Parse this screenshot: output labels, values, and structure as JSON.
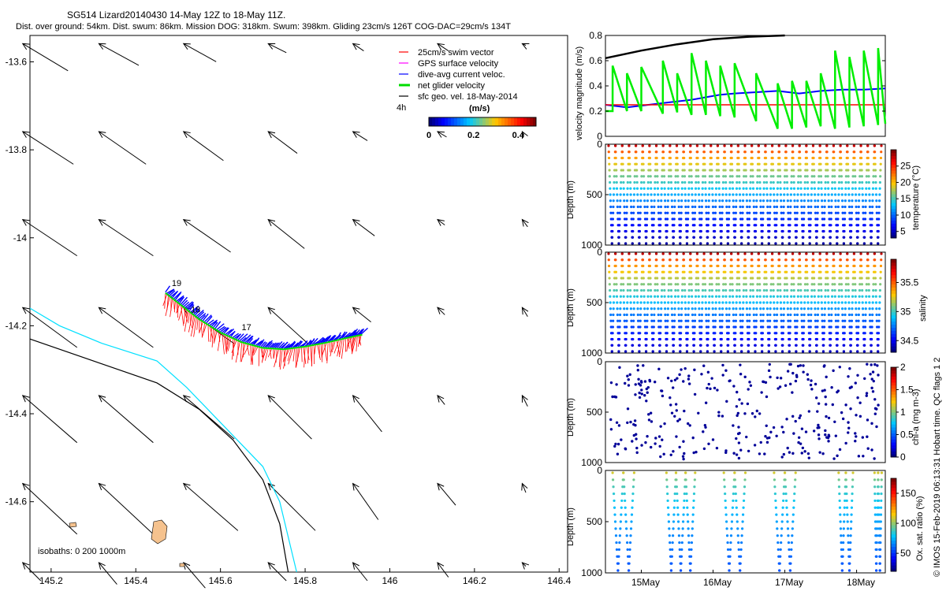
{
  "header": {
    "title": "SG514 Lizard20140430 14-May 12Z to 18-May 11Z.",
    "subtitle": "Dist. over ground: 54km. Dist. swum: 86km. Mission DOG: 318km. Swum: 398km. Gliding 23cm/s 126T COG-DAC=29cm/s 134T"
  },
  "copyright": "© IMOS 15-Feb-2019 06:13:31 Hobart time. QC flags 1  2",
  "colors": {
    "swim": "#ff0000",
    "gps": "#ff00ff",
    "dac": "#0000ff",
    "net": "#00dd00",
    "sfc": "#000000",
    "isobath_shallow": "#00e0ff",
    "isobath_deep": "#000000",
    "island": "#f5c28e"
  },
  "chart_data": [
    {
      "id": "map",
      "type": "scatter",
      "title": "",
      "xlabel": "",
      "ylabel": "",
      "xlim": [
        145.15,
        146.42
      ],
      "ylim": [
        -14.76,
        -13.54
      ],
      "xticks": [
        "145.2",
        "145.4",
        "145.6",
        "145.8",
        "146",
        "146.2",
        "146.4"
      ],
      "xtick_values": [
        145.2,
        145.4,
        145.6,
        145.8,
        146.0,
        146.2,
        146.4
      ],
      "yticks": [
        "-13.6",
        "-13.8",
        "-14",
        "-14.2",
        "-14.4",
        "-14.6"
      ],
      "ytick_values": [
        -13.6,
        -13.8,
        -14.0,
        -14.2,
        -14.4,
        -14.6
      ],
      "legend": {
        "placement": "top-right",
        "entries": [
          "25cm/s swim vector",
          "GPS surface velocity",
          "dive-avg current veloc.",
          "net glider velocity",
          "sfc geo. vel. 18-May-2014"
        ],
        "arrow_scale_label": "4h",
        "colorbar_title": "(m/s)",
        "colorbar_ticks": [
          "0",
          "0.2",
          "0.4"
        ],
        "colorbar_tick_values": [
          0,
          0.2,
          0.4
        ],
        "colorbar_range": [
          0,
          0.48
        ]
      },
      "isobath_label": "isobaths: 0   200  1000m",
      "day_labels": [
        "19",
        "18",
        "17"
      ],
      "day_label_positions": [
        [
          145.485,
          -14.11
        ],
        [
          145.53,
          -14.17
        ],
        [
          145.65,
          -14.21
        ]
      ],
      "track": {
        "lon": [
          145.47,
          145.51,
          145.55,
          145.6,
          145.65,
          145.7,
          145.75,
          145.8,
          145.85,
          145.9,
          145.935
        ],
        "lat": [
          -14.12,
          -14.15,
          -14.18,
          -14.21,
          -14.232,
          -14.245,
          -14.248,
          -14.242,
          -14.233,
          -14.222,
          -14.215
        ]
      },
      "isobath_shallow": {
        "lon": [
          145.15,
          145.22,
          145.32,
          145.45,
          145.52,
          145.6,
          145.7,
          145.74,
          145.78
        ],
        "lat": [
          -14.16,
          -14.2,
          -14.24,
          -14.28,
          -14.34,
          -14.42,
          -14.52,
          -14.6,
          -14.76
        ]
      },
      "isobath_deep": {
        "lon": [
          145.15,
          145.3,
          145.45,
          145.55,
          145.63,
          145.7,
          145.74,
          145.76
        ],
        "lat": [
          -14.23,
          -14.28,
          -14.33,
          -14.39,
          -14.46,
          -14.55,
          -14.65,
          -14.76
        ]
      },
      "geo_vectors": {
        "columns_lon": [
          145.17,
          145.35,
          145.55,
          145.75,
          145.95,
          146.15,
          146.35
        ],
        "rows_lat": [
          -13.58,
          -13.78,
          -13.98,
          -14.18,
          -14.38,
          -14.58,
          -14.76
        ],
        "u": [
          [
            0.25,
            0.22,
            0.18,
            0.1,
            0.06,
            0.06,
            0.02
          ],
          [
            0.28,
            0.26,
            0.22,
            0.16,
            0.08,
            0.05,
            0.01
          ],
          [
            0.3,
            0.3,
            0.26,
            0.2,
            0.12,
            0.04,
            0.03
          ],
          [
            0.3,
            0.3,
            0.28,
            0.22,
            0.1,
            0.04,
            0.03
          ],
          [
            0.3,
            0.3,
            0.28,
            0.24,
            0.16,
            0.04,
            0.03
          ],
          [
            0.3,
            0.3,
            0.3,
            0.26,
            0.14,
            0.1,
            0.02
          ],
          [
            0.1,
            0.1,
            0.12,
            0.1,
            0.08,
            0.06,
            0.02
          ]
        ],
        "v": [
          [
            0.15,
            0.12,
            0.1,
            0.05,
            0.04,
            0.04,
            0.01
          ],
          [
            0.18,
            0.18,
            0.16,
            0.12,
            0.05,
            0.03,
            0.02
          ],
          [
            0.2,
            0.2,
            0.18,
            0.16,
            0.09,
            0.03,
            0.04
          ],
          [
            0.22,
            0.22,
            0.2,
            0.2,
            0.08,
            0.04,
            0.05
          ],
          [
            0.26,
            0.26,
            0.24,
            0.24,
            0.2,
            0.05,
            0.06
          ],
          [
            0.28,
            0.28,
            0.26,
            0.26,
            0.2,
            0.12,
            0.05
          ],
          [
            0.1,
            0.12,
            0.14,
            0.1,
            0.1,
            0.08,
            0.02
          ]
        ]
      }
    },
    {
      "id": "velocity",
      "type": "line",
      "ylabel": "velocity magnitude (m/s)",
      "ylim": [
        0,
        0.8
      ],
      "yticks": [
        "0",
        "0.2",
        "0.4",
        "0.6",
        "0.8"
      ],
      "ytick_values": [
        0,
        0.2,
        0.4,
        0.6,
        0.8
      ],
      "xlim": [
        14.5,
        18.4
      ],
      "series": [
        {
          "name": "dive-avg current veloc.",
          "x": [
            14.5,
            14.8,
            15.1,
            15.4,
            15.7,
            15.9,
            16.1,
            16.3,
            16.6,
            16.9,
            17.2,
            17.5,
            17.8,
            18.1,
            18.4
          ],
          "y": [
            0.25,
            0.23,
            0.25,
            0.27,
            0.29,
            0.31,
            0.33,
            0.34,
            0.35,
            0.36,
            0.34,
            0.36,
            0.37,
            0.37,
            0.38
          ]
        },
        {
          "name": "25cm/s swim vector",
          "x": [
            14.5,
            18.4
          ],
          "y": [
            0.25,
            0.25
          ]
        },
        {
          "name": "sfc geo. vel.",
          "x": [
            14.5,
            15.0,
            15.5,
            16.0,
            16.5,
            17.0
          ],
          "y": [
            0.62,
            0.68,
            0.73,
            0.77,
            0.79,
            0.8
          ]
        },
        {
          "name": "net glider velocity",
          "x": [
            14.5,
            14.6,
            14.6,
            14.8,
            14.8,
            15.0,
            15.0,
            15.3,
            15.3,
            15.5,
            15.5,
            15.7,
            15.7,
            15.9,
            15.9,
            16.1,
            16.1,
            16.3,
            16.3,
            16.6,
            16.6,
            16.9,
            16.9,
            17.1,
            17.1,
            17.3,
            17.3,
            17.5,
            17.5,
            17.7,
            17.7,
            17.9,
            17.9,
            18.1,
            18.1,
            18.3,
            18.3,
            18.4
          ],
          "y": [
            0.2,
            0.2,
            0.56,
            0.2,
            0.5,
            0.2,
            0.55,
            0.18,
            0.6,
            0.19,
            0.5,
            0.17,
            0.66,
            0.17,
            0.6,
            0.16,
            0.56,
            0.15,
            0.58,
            0.12,
            0.5,
            0.06,
            0.42,
            0.06,
            0.44,
            0.07,
            0.44,
            0.08,
            0.5,
            0.06,
            0.68,
            0.07,
            0.63,
            0.08,
            0.68,
            0.09,
            0.7,
            0.1
          ]
        }
      ]
    },
    {
      "id": "temperature",
      "type": "scatter",
      "ylabel": "Depth (m)",
      "colorbar_label": "temperature (°C)",
      "yticks": [
        "0",
        "500",
        "1000"
      ],
      "ytick_values": [
        0,
        500,
        1000
      ],
      "ylim": [
        1000,
        0
      ],
      "colorbar_ticks": [
        "5",
        "10",
        "15",
        "20",
        "25"
      ],
      "colorbar_tick_values": [
        5,
        10,
        15,
        20,
        25
      ],
      "colorbar_range": [
        3,
        30
      ],
      "cycles": 40,
      "max_depth": 1000,
      "surface_value": 28,
      "bottom_value": 4
    },
    {
      "id": "salinity",
      "type": "scatter",
      "ylabel": "Depth (m)",
      "colorbar_label": "salinity",
      "yticks": [
        "0",
        "500",
        "1000"
      ],
      "ytick_values": [
        0,
        500,
        1000
      ],
      "ylim": [
        1000,
        0
      ],
      "colorbar_ticks": [
        "34.5",
        "35",
        "35.5"
      ],
      "colorbar_tick_values": [
        34.5,
        35,
        35.5
      ],
      "colorbar_range": [
        34.3,
        35.9
      ],
      "cycles": 40,
      "max_depth": 1000,
      "surface_value": 35.8,
      "bottom_value": 34.4
    },
    {
      "id": "chla",
      "type": "scatter",
      "ylabel": "Depth (m)",
      "colorbar_label": "chl-a (mg m-3)",
      "yticks": [
        "0",
        "500",
        "1000"
      ],
      "ytick_values": [
        0,
        500,
        1000
      ],
      "ylim": [
        1000,
        0
      ],
      "colorbar_ticks": [
        "0",
        "0.5",
        "1",
        "1.5",
        "2"
      ],
      "colorbar_tick_values": [
        0,
        0.5,
        1,
        1.5,
        2
      ],
      "colorbar_range": [
        0,
        2
      ],
      "points": 330,
      "max_depth": 1000,
      "typical_value": 0.05
    },
    {
      "id": "oxygen",
      "type": "scatter",
      "ylabel": "Depth (m)",
      "colorbar_label": "Ox. sat. ratio (%)",
      "yticks": [
        "0",
        "500",
        "1000"
      ],
      "ytick_values": [
        0,
        500,
        1000
      ],
      "ylim": [
        1000,
        0
      ],
      "colorbar_ticks": [
        "50",
        "100",
        "150"
      ],
      "colorbar_tick_values": [
        50,
        100,
        150
      ],
      "colorbar_range": [
        20,
        175
      ],
      "xticks": [
        "15May",
        "16May",
        "17May",
        "18May"
      ],
      "xtick_values": [
        15,
        16,
        17,
        18
      ],
      "xlim": [
        14.5,
        18.4
      ],
      "dive_groups": [
        [
          14.6,
          14.9
        ],
        [
          15.35,
          15.75
        ],
        [
          16.15,
          16.45
        ],
        [
          16.85,
          17.15
        ],
        [
          17.75,
          17.95
        ],
        [
          18.25,
          18.35
        ]
      ],
      "surface_value": 110,
      "bottom_value": 55
    }
  ]
}
